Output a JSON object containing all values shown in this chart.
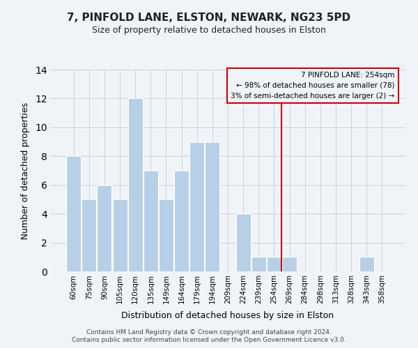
{
  "title": "7, PINFOLD LANE, ELSTON, NEWARK, NG23 5PD",
  "subtitle": "Size of property relative to detached houses in Elston",
  "xlabel": "Distribution of detached houses by size in Elston",
  "ylabel": "Number of detached properties",
  "categories": [
    "60sqm",
    "75sqm",
    "90sqm",
    "105sqm",
    "120sqm",
    "135sqm",
    "149sqm",
    "164sqm",
    "179sqm",
    "194sqm",
    "209sqm",
    "224sqm",
    "239sqm",
    "254sqm",
    "269sqm",
    "284sqm",
    "298sqm",
    "313sqm",
    "328sqm",
    "343sqm",
    "358sqm"
  ],
  "values": [
    8,
    5,
    6,
    5,
    12,
    7,
    5,
    7,
    9,
    9,
    0,
    4,
    1,
    1,
    1,
    0,
    0,
    0,
    0,
    1,
    0
  ],
  "bar_color": "#b8cfe8",
  "bar_edge_color": "#ffffff",
  "grid_color": "#d0d0d0",
  "vline_x": 13.5,
  "vline_color": "#cc0000",
  "annotation_line1": "7 PINFOLD LANE: 254sqm",
  "annotation_line2": "← 98% of detached houses are smaller (78)",
  "annotation_line3": "3% of semi-detached houses are larger (2) →",
  "annotation_box_color": "#cc0000",
  "ylim": [
    0,
    14
  ],
  "yticks": [
    0,
    2,
    4,
    6,
    8,
    10,
    12,
    14
  ],
  "footer_line1": "Contains HM Land Registry data © Crown copyright and database right 2024.",
  "footer_line2": "Contains public sector information licensed under the Open Government Licence v3.0.",
  "background_color": "#f0f4f8"
}
